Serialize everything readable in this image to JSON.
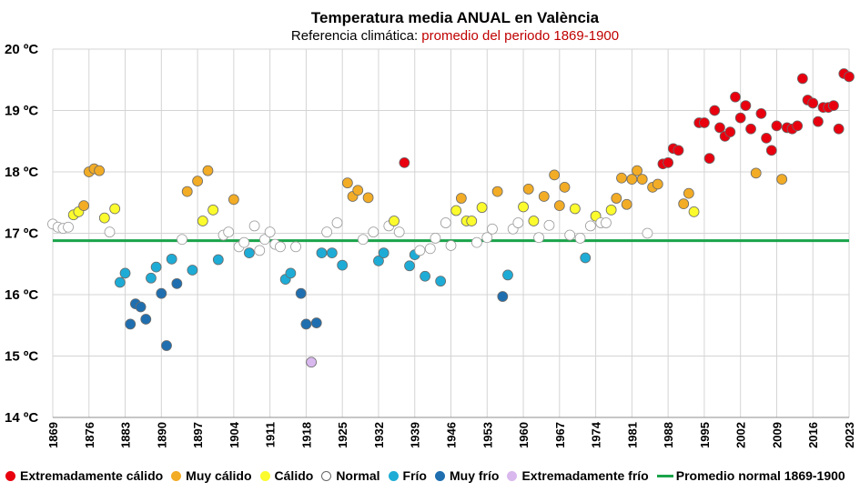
{
  "chart_data": {
    "type": "scatter",
    "title": "Temperatura media ANUAL en València",
    "subtitle_prefix": "Referencia climática: ",
    "subtitle_highlight": "promedio del periodo 1869-1900",
    "ylim": [
      14,
      20
    ],
    "xlim": [
      1869,
      2023
    ],
    "yticks": [
      "14 ºC",
      "15 ºC",
      "16 ºC",
      "17 ºC",
      "18 ºC",
      "19 ºC",
      "20 ºC"
    ],
    "yticks_values": [
      14,
      15,
      16,
      17,
      18,
      19,
      20
    ],
    "xticks": [
      "1869",
      "1876",
      "1883",
      "1890",
      "1897",
      "1904",
      "1911",
      "1918",
      "1925",
      "1932",
      "1939",
      "1946",
      "1953",
      "1960",
      "1967",
      "1974",
      "1981",
      "1988",
      "1995",
      "2002",
      "2009",
      "2016",
      "2023"
    ],
    "grid": true,
    "reference_line": {
      "label": "Promedio normal 1869-1900",
      "value": 16.88,
      "color": "#1aa34a"
    },
    "categories": {
      "ec": {
        "label": "Extremadamente cálido",
        "color": "#e8000f"
      },
      "mc": {
        "label": "Muy cálido",
        "color": "#f2ac26"
      },
      "c": {
        "label": "Cálido",
        "color": "#fbfb2d"
      },
      "n": {
        "label": "Normal",
        "color": "#ffffff"
      },
      "f": {
        "label": "Frío",
        "color": "#1eacd6"
      },
      "mf": {
        "label": "Muy frío",
        "color": "#1f6fb0"
      },
      "ef": {
        "label": "Extremadamente frío",
        "color": "#d9b8ee"
      }
    },
    "legend_order": [
      "ec",
      "mc",
      "c",
      "n",
      "f",
      "mf",
      "ef"
    ],
    "points": [
      [
        1869,
        17.15,
        "n"
      ],
      [
        1870,
        17.1,
        "n"
      ],
      [
        1871,
        17.08,
        "n"
      ],
      [
        1872,
        17.1,
        "n"
      ],
      [
        1873,
        17.3,
        "c"
      ],
      [
        1874,
        17.35,
        "c"
      ],
      [
        1875,
        17.45,
        "mc"
      ],
      [
        1876,
        18.0,
        "mc"
      ],
      [
        1877,
        18.05,
        "mc"
      ],
      [
        1878,
        18.02,
        "mc"
      ],
      [
        1879,
        17.25,
        "c"
      ],
      [
        1880,
        17.02,
        "n"
      ],
      [
        1881,
        17.4,
        "c"
      ],
      [
        1882,
        16.2,
        "f"
      ],
      [
        1883,
        16.35,
        "f"
      ],
      [
        1884,
        15.52,
        "mf"
      ],
      [
        1885,
        15.85,
        "mf"
      ],
      [
        1886,
        15.8,
        "mf"
      ],
      [
        1887,
        15.6,
        "mf"
      ],
      [
        1888,
        16.27,
        "f"
      ],
      [
        1889,
        16.45,
        "f"
      ],
      [
        1890,
        16.02,
        "mf"
      ],
      [
        1891,
        15.17,
        "mf"
      ],
      [
        1892,
        16.58,
        "f"
      ],
      [
        1893,
        16.18,
        "mf"
      ],
      [
        1894,
        16.9,
        "n"
      ],
      [
        1895,
        17.68,
        "mc"
      ],
      [
        1896,
        16.4,
        "f"
      ],
      [
        1897,
        17.85,
        "mc"
      ],
      [
        1898,
        17.2,
        "c"
      ],
      [
        1899,
        18.02,
        "mc"
      ],
      [
        1900,
        17.38,
        "c"
      ],
      [
        1901,
        16.57,
        "f"
      ],
      [
        1902,
        16.97,
        "n"
      ],
      [
        1903,
        17.02,
        "n"
      ],
      [
        1904,
        17.55,
        "mc"
      ],
      [
        1905,
        16.78,
        "n"
      ],
      [
        1906,
        16.85,
        "n"
      ],
      [
        1907,
        16.68,
        "f"
      ],
      [
        1908,
        17.12,
        "n"
      ],
      [
        1909,
        16.72,
        "n"
      ],
      [
        1910,
        16.9,
        "n"
      ],
      [
        1911,
        17.02,
        "n"
      ],
      [
        1912,
        16.82,
        "n"
      ],
      [
        1913,
        16.78,
        "n"
      ],
      [
        1914,
        16.25,
        "f"
      ],
      [
        1915,
        16.35,
        "f"
      ],
      [
        1916,
        16.78,
        "n"
      ],
      [
        1917,
        16.02,
        "mf"
      ],
      [
        1918,
        15.52,
        "mf"
      ],
      [
        1919,
        14.9,
        "ef"
      ],
      [
        1920,
        15.54,
        "mf"
      ],
      [
        1921,
        16.68,
        "f"
      ],
      [
        1922,
        17.02,
        "n"
      ],
      [
        1923,
        16.68,
        "f"
      ],
      [
        1924,
        17.17,
        "n"
      ],
      [
        1925,
        16.48,
        "f"
      ],
      [
        1926,
        17.82,
        "mc"
      ],
      [
        1927,
        17.6,
        "mc"
      ],
      [
        1928,
        17.7,
        "mc"
      ],
      [
        1929,
        16.9,
        "n"
      ],
      [
        1930,
        17.58,
        "mc"
      ],
      [
        1931,
        17.02,
        "n"
      ],
      [
        1932,
        16.55,
        "f"
      ],
      [
        1933,
        16.68,
        "f"
      ],
      [
        1934,
        17.12,
        "n"
      ],
      [
        1935,
        17.2,
        "c"
      ],
      [
        1936,
        17.02,
        "n"
      ],
      [
        1937,
        18.15,
        "ec"
      ],
      [
        1938,
        16.47,
        "f"
      ],
      [
        1939,
        16.65,
        "f"
      ],
      [
        1940,
        16.72,
        "n"
      ],
      [
        1941,
        16.3,
        "f"
      ],
      [
        1942,
        16.75,
        "n"
      ],
      [
        1943,
        16.92,
        "n"
      ],
      [
        1944,
        16.22,
        "f"
      ],
      [
        1945,
        17.17,
        "n"
      ],
      [
        1946,
        16.8,
        "n"
      ],
      [
        1947,
        17.37,
        "c"
      ],
      [
        1948,
        17.57,
        "mc"
      ],
      [
        1949,
        17.2,
        "c"
      ],
      [
        1950,
        17.2,
        "c"
      ],
      [
        1951,
        16.85,
        "n"
      ],
      [
        1952,
        17.42,
        "c"
      ],
      [
        1953,
        16.93,
        "n"
      ],
      [
        1954,
        17.07,
        "n"
      ],
      [
        1955,
        17.68,
        "mc"
      ],
      [
        1956,
        15.97,
        "mf"
      ],
      [
        1957,
        16.32,
        "f"
      ],
      [
        1958,
        17.07,
        "n"
      ],
      [
        1959,
        17.17,
        "n"
      ],
      [
        1960,
        17.43,
        "c"
      ],
      [
        1961,
        17.72,
        "mc"
      ],
      [
        1962,
        17.2,
        "c"
      ],
      [
        1963,
        16.93,
        "n"
      ],
      [
        1964,
        17.6,
        "mc"
      ],
      [
        1965,
        17.13,
        "n"
      ],
      [
        1966,
        17.95,
        "mc"
      ],
      [
        1967,
        17.45,
        "mc"
      ],
      [
        1968,
        17.75,
        "mc"
      ],
      [
        1969,
        16.97,
        "n"
      ],
      [
        1970,
        17.4,
        "c"
      ],
      [
        1971,
        16.92,
        "n"
      ],
      [
        1972,
        16.6,
        "f"
      ],
      [
        1973,
        17.12,
        "n"
      ],
      [
        1974,
        17.28,
        "c"
      ],
      [
        1975,
        17.17,
        "n"
      ],
      [
        1976,
        17.17,
        "n"
      ],
      [
        1977,
        17.38,
        "c"
      ],
      [
        1978,
        17.57,
        "mc"
      ],
      [
        1979,
        17.9,
        "mc"
      ],
      [
        1980,
        17.47,
        "mc"
      ],
      [
        1981,
        17.88,
        "mc"
      ],
      [
        1982,
        18.02,
        "mc"
      ],
      [
        1983,
        17.88,
        "mc"
      ],
      [
        1984,
        17.0,
        "n"
      ],
      [
        1985,
        17.75,
        "mc"
      ],
      [
        1986,
        17.8,
        "mc"
      ],
      [
        1987,
        18.13,
        "ec"
      ],
      [
        1988,
        18.15,
        "ec"
      ],
      [
        1989,
        18.38,
        "ec"
      ],
      [
        1990,
        18.35,
        "ec"
      ],
      [
        1991,
        17.48,
        "mc"
      ],
      [
        1992,
        17.65,
        "mc"
      ],
      [
        1993,
        17.35,
        "c"
      ],
      [
        1994,
        18.8,
        "ec"
      ],
      [
        1995,
        18.8,
        "ec"
      ],
      [
        1996,
        18.22,
        "ec"
      ],
      [
        1997,
        19.0,
        "ec"
      ],
      [
        1998,
        18.72,
        "ec"
      ],
      [
        1999,
        18.58,
        "ec"
      ],
      [
        2000,
        18.65,
        "ec"
      ],
      [
        2001,
        19.22,
        "ec"
      ],
      [
        2002,
        18.88,
        "ec"
      ],
      [
        2003,
        19.08,
        "ec"
      ],
      [
        2004,
        18.7,
        "ec"
      ],
      [
        2005,
        17.98,
        "mc"
      ],
      [
        2006,
        18.95,
        "ec"
      ],
      [
        2007,
        18.55,
        "ec"
      ],
      [
        2008,
        18.35,
        "ec"
      ],
      [
        2009,
        18.75,
        "ec"
      ],
      [
        2010,
        17.88,
        "mc"
      ],
      [
        2011,
        18.72,
        "ec"
      ],
      [
        2012,
        18.7,
        "ec"
      ],
      [
        2013,
        18.75,
        "ec"
      ],
      [
        2014,
        19.52,
        "ec"
      ],
      [
        2015,
        19.17,
        "ec"
      ],
      [
        2016,
        19.12,
        "ec"
      ],
      [
        2017,
        18.82,
        "ec"
      ],
      [
        2018,
        19.05,
        "ec"
      ],
      [
        2019,
        19.05,
        "ec"
      ],
      [
        2020,
        19.08,
        "ec"
      ],
      [
        2021,
        18.7,
        "ec"
      ],
      [
        2022,
        19.6,
        "ec"
      ],
      [
        2023,
        19.55,
        "ec"
      ]
    ]
  }
}
